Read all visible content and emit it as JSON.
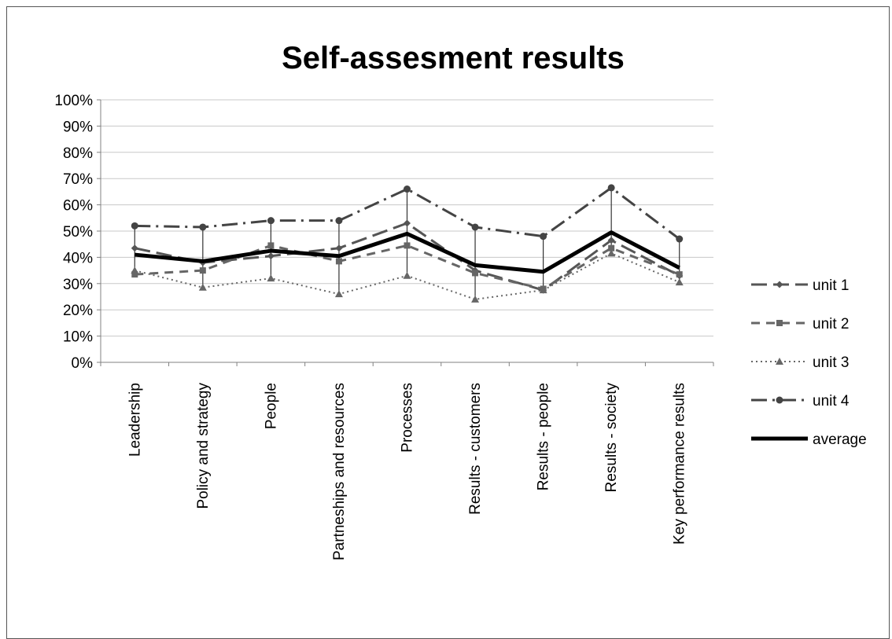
{
  "chart_data": {
    "type": "line",
    "title": "Self-assesment results",
    "categories": [
      "Leadership",
      "Policy and strategy",
      "People",
      "Partneships and resources",
      "Processes",
      "Results - customers",
      "Results - people",
      "Results - society",
      "Key performance results"
    ],
    "ylim": [
      0,
      100
    ],
    "y_ticks": [
      "0%",
      "10%",
      "20%",
      "30%",
      "40%",
      "50%",
      "60%",
      "70%",
      "80%",
      "90%",
      "100%"
    ],
    "grid": true,
    "legend_position": "right",
    "series": [
      {
        "name": "unit 1",
        "values": [
          43.5,
          38,
          40.5,
          43.5,
          53,
          35,
          27.5,
          46.5,
          33
        ],
        "style": "long-dash",
        "marker": "diamond",
        "color": "#555555"
      },
      {
        "name": "unit 2",
        "values": [
          33.5,
          35,
          44.5,
          38.5,
          44.5,
          34,
          28,
          43.5,
          33.5
        ],
        "style": "dash",
        "marker": "square",
        "color": "#666666"
      },
      {
        "name": "unit 3",
        "values": [
          35,
          28.5,
          32,
          26,
          33,
          24,
          27.5,
          41.5,
          30.5
        ],
        "style": "dot",
        "marker": "triangle",
        "color": "#666666"
      },
      {
        "name": "unit 4",
        "values": [
          52,
          51.5,
          54,
          54,
          66,
          51.5,
          48,
          66.5,
          47
        ],
        "style": "dash-dot",
        "marker": "circle",
        "color": "#444444"
      },
      {
        "name": "average",
        "values": [
          41,
          38.5,
          42.5,
          40.5,
          49,
          37,
          34.5,
          49.5,
          36
        ],
        "style": "solid-thick",
        "marker": "none",
        "color": "#000000"
      }
    ]
  }
}
